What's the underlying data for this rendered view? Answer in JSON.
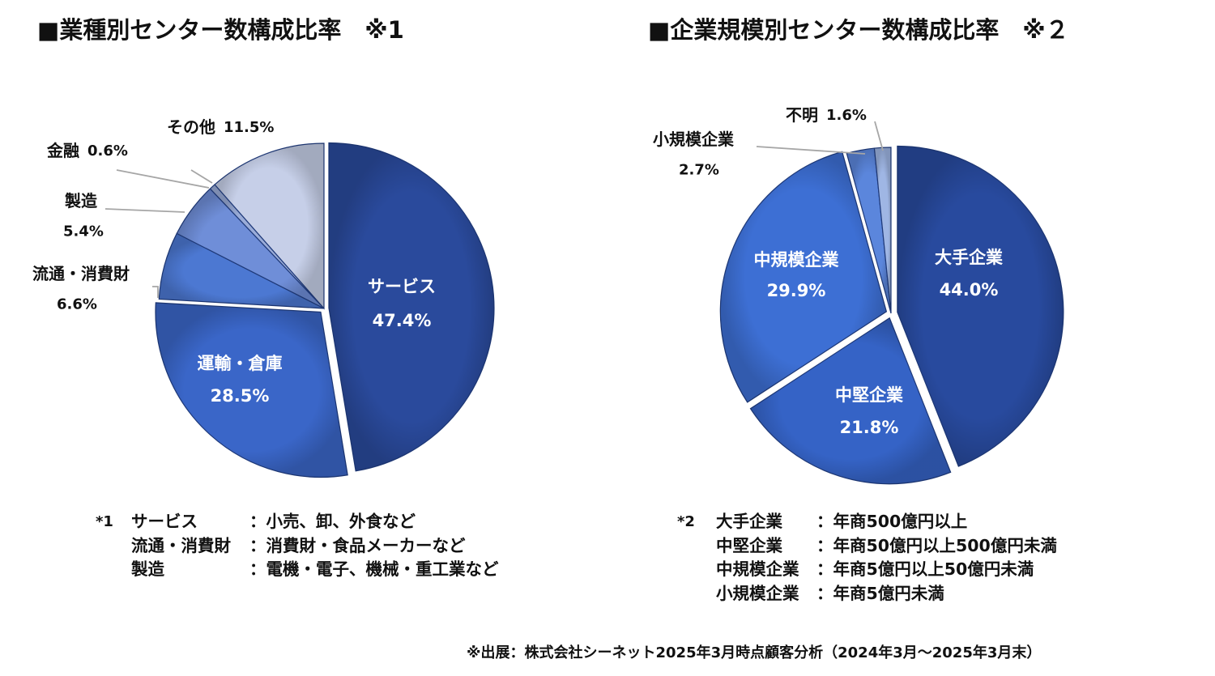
{
  "titles": {
    "left": "■業種別センター数構成比率　※1",
    "right": "■企業規模別センター数構成比率　※２"
  },
  "chart_data": [
    {
      "type": "pie",
      "title": "■業種別センター数構成比率　※1",
      "slices": [
        {
          "label": "サービス",
          "value": 47.4,
          "value_label": "47.4%"
        },
        {
          "label": "運輸・倉庫",
          "value": 28.5,
          "value_label": "28.5%"
        },
        {
          "label": "流通・消費財",
          "value": 6.6,
          "value_label": "6.6%"
        },
        {
          "label": "製造",
          "value": 5.4,
          "value_label": "5.4%"
        },
        {
          "label": "金融",
          "value": 0.6,
          "value_label": "0.6%"
        },
        {
          "label": "その他",
          "value": 11.5,
          "value_label": "11.5%"
        }
      ],
      "colors": [
        "#2a4a9c",
        "#3a66c8",
        "#4c78d2",
        "#6f8ed8",
        "#9aacd8",
        "#c6cfe8"
      ]
    },
    {
      "type": "pie",
      "title": "■企業規模別センター数構成比率　※２",
      "slices": [
        {
          "label": "大手企業",
          "value": 44.0,
          "value_label": "44.0%"
        },
        {
          "label": "中堅企業",
          "value": 21.8,
          "value_label": "21.8%"
        },
        {
          "label": "中規模企業",
          "value": 29.9,
          "value_label": "29.9%"
        },
        {
          "label": "小規模企業",
          "value": 2.7,
          "value_label": "2.7%"
        },
        {
          "label": "不明",
          "value": 1.6,
          "value_label": "1.6%"
        }
      ],
      "colors": [
        "#284a9e",
        "#3563c6",
        "#3d6fd4",
        "#5b86dc",
        "#9fb6e4"
      ]
    }
  ],
  "notes": {
    "left": {
      "mark": "*1",
      "rows": [
        {
          "term": "サービス",
          "desc": "：小売、卸、外食など"
        },
        {
          "term": "流通・消費財",
          "desc": "：消費財・食品メーカーなど"
        },
        {
          "term": "製造",
          "desc": "：電機・電子、機械・重工業など"
        }
      ]
    },
    "right": {
      "mark": "*2",
      "rows": [
        {
          "term": "大手企業",
          "desc": "：年商500億円以上"
        },
        {
          "term": "中堅企業",
          "desc": "：年商50億円以上500億円未満"
        },
        {
          "term": "中規模企業",
          "desc": "：年商5億円以上50億円未満"
        },
        {
          "term": "小規模企業",
          "desc": "：年商5億円未満"
        }
      ]
    }
  },
  "source": "※出展：株式会社シーネット2025年3月時点顧客分析（2024年3月～2025年3月末）"
}
